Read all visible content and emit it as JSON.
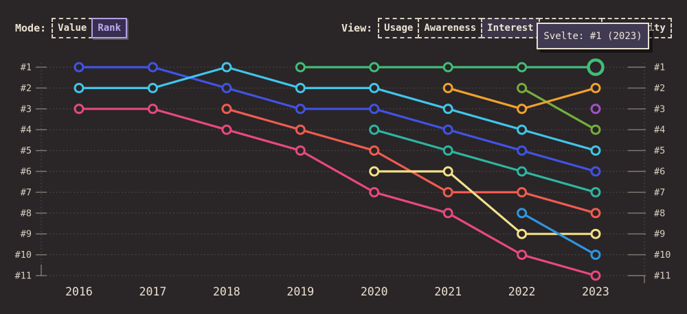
{
  "header": {
    "mode": {
      "label": "Mode:",
      "options": [
        {
          "label": "Value",
          "selected": false
        },
        {
          "label": "Rank",
          "selected": true
        }
      ]
    },
    "view": {
      "label": "View:",
      "options": [
        {
          "label": "Usage",
          "selected": false,
          "obscured_by_tooltip": false
        },
        {
          "label": "Awareness",
          "selected": false,
          "obscured_by_tooltip": false
        },
        {
          "label": "Interest",
          "selected": true,
          "obscured_by_tooltip": false
        },
        {
          "label": "Retention",
          "selected": false,
          "obscured_by_tooltip": true
        },
        {
          "label": "Positivity",
          "selected": false,
          "obscured_by_tooltip": true,
          "visible_fragment": "ty"
        }
      ]
    }
  },
  "tooltip": {
    "text": "Svelte: #1 (2023)"
  },
  "colors": {
    "background": "#2a2527",
    "text_cream": "#ece4d4",
    "axis_label": "#d7d0c2",
    "year_label": "#e9e1d1",
    "grid_dotted": "#5a5452",
    "tick_solid": "#837c74",
    "tooltip_bg": "#403a52",
    "tooltip_border": "#e9e1d1",
    "selected_mode_bg": "#382f50",
    "selected_mode_text": "#bcabee",
    "selected_view_bg": "#3c3648"
  },
  "chart_data": {
    "type": "line",
    "subtype": "bump-rank-chart",
    "title": "",
    "xlabel": "",
    "ylabel": "",
    "x_labels": [
      "2016",
      "2017",
      "2018",
      "2019",
      "2020",
      "2021",
      "2022",
      "2023"
    ],
    "y_tick_labels": [
      "#1",
      "#2",
      "#3",
      "#4",
      "#5",
      "#6",
      "#7",
      "#8",
      "#9",
      "#10",
      "#11"
    ],
    "y_axis_inverted": true,
    "ylim": [
      1,
      11
    ],
    "grid": "dotted horizontal gridlines per rank, dotted vertical edge axes, solid tick marks both sides",
    "legend": "none (series unlabeled except tooltip)",
    "highlight": {
      "series": "Svelte",
      "year": 2023,
      "rank": 1,
      "tooltip": "Svelte: #1 (2023)"
    },
    "series": [
      {
        "name": "unlabeled-pink",
        "color": "#e8497d",
        "points": [
          [
            2016,
            3
          ],
          [
            2017,
            3
          ],
          [
            2018,
            4
          ],
          [
            2019,
            5
          ],
          [
            2020,
            7
          ],
          [
            2021,
            8
          ],
          [
            2022,
            10
          ],
          [
            2023,
            11
          ]
        ]
      },
      {
        "name": "unlabeled-blue",
        "color": "#4153e4",
        "points": [
          [
            2016,
            1
          ],
          [
            2017,
            1
          ],
          [
            2018,
            2
          ],
          [
            2019,
            3
          ],
          [
            2020,
            3
          ],
          [
            2021,
            4
          ],
          [
            2022,
            5
          ],
          [
            2023,
            6
          ]
        ]
      },
      {
        "name": "unlabeled-cyan",
        "color": "#40c6ea",
        "points": [
          [
            2016,
            2
          ],
          [
            2017,
            2
          ],
          [
            2018,
            1
          ],
          [
            2019,
            2
          ],
          [
            2020,
            2
          ],
          [
            2021,
            3
          ],
          [
            2022,
            4
          ],
          [
            2023,
            5
          ]
        ]
      },
      {
        "name": "unlabeled-coral",
        "color": "#f05c50",
        "points": [
          [
            2018,
            3
          ],
          [
            2019,
            4
          ],
          [
            2020,
            5
          ],
          [
            2021,
            7
          ],
          [
            2022,
            7
          ],
          [
            2023,
            8
          ]
        ]
      },
      {
        "name": "unlabeled-teal",
        "color": "#2fb5a0",
        "points": [
          [
            2020,
            4
          ],
          [
            2021,
            5
          ],
          [
            2022,
            6
          ],
          [
            2023,
            7
          ]
        ]
      },
      {
        "name": "unlabeled-yellow",
        "color": "#f3e189",
        "points": [
          [
            2020,
            6
          ],
          [
            2021,
            6
          ],
          [
            2022,
            9
          ],
          [
            2023,
            9
          ]
        ]
      },
      {
        "name": "unlabeled-azure",
        "color": "#2e96e2",
        "points": [
          [
            2022,
            8
          ],
          [
            2023,
            10
          ]
        ]
      },
      {
        "name": "unlabeled-olive",
        "color": "#74ae3c",
        "points": [
          [
            2022,
            2
          ],
          [
            2023,
            4
          ]
        ]
      },
      {
        "name": "unlabeled-amber",
        "color": "#f0a22b",
        "points": [
          [
            2021,
            2
          ],
          [
            2022,
            3
          ],
          [
            2023,
            2
          ]
        ]
      },
      {
        "name": "unlabeled-purple",
        "color": "#a053c5",
        "points": [
          [
            2023,
            3
          ]
        ]
      },
      {
        "name": "Svelte",
        "color": "#41bd78",
        "points": [
          [
            2019,
            1
          ],
          [
            2020,
            1
          ],
          [
            2021,
            1
          ],
          [
            2022,
            1
          ],
          [
            2023,
            1
          ]
        ],
        "highlight_last": true
      }
    ]
  }
}
